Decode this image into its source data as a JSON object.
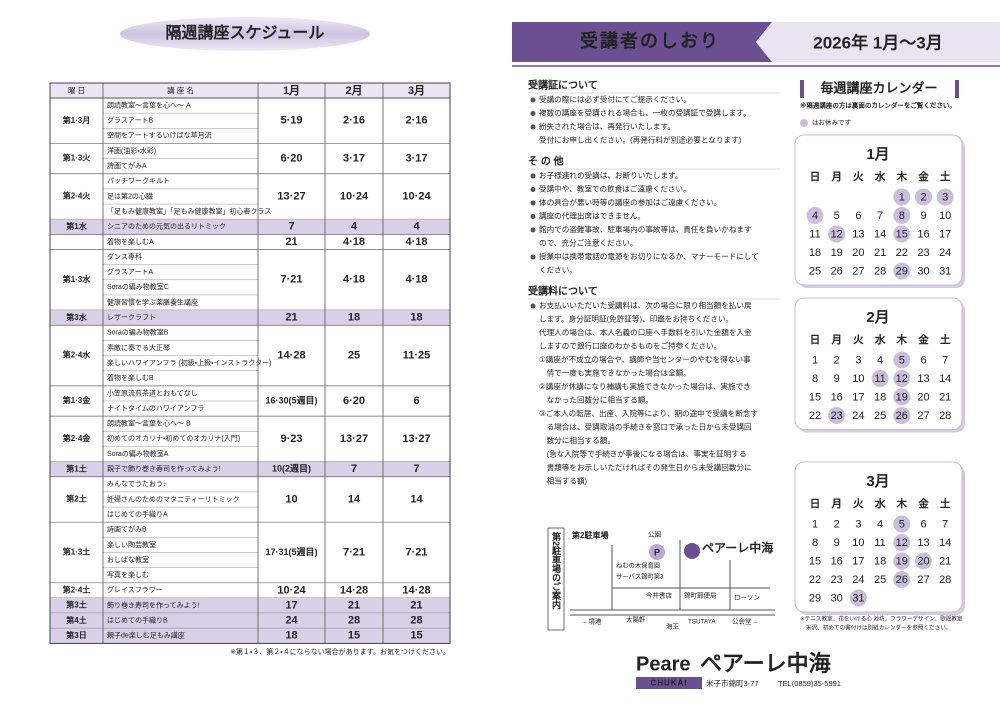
{
  "schedule": {
    "title": "隔週講座スケジュール",
    "header": [
      "曜 日",
      "講 座 名",
      "1月",
      "2月",
      "3月"
    ],
    "groups": [
      {
        "day": "第1·3月",
        "courses": [
          "朗読教室～言葉を心へ～ A",
          "グラスアートB",
          "空間をアートするいけばな草月流"
        ],
        "months": [
          "5·19",
          "2·16",
          "2·16"
        ],
        "shaded": false
      },
      {
        "day": "第1·3火",
        "courses": [
          "洋画(油彩・水彩)",
          "詩画てがみA"
        ],
        "months": [
          "6·20",
          "3·17",
          "3·17"
        ],
        "shaded": false
      },
      {
        "day": "第2·4火",
        "courses": [
          "パッチワークキルト",
          "足は第2の心臓",
          "「足もみ健康教室」「足もみ健康教室」初心者クラス"
        ],
        "months": [
          "13·27",
          "10·24",
          "10·24"
        ],
        "shaded": false
      },
      {
        "day": "第1水",
        "courses": [
          "シニアのための元気の出るリトミック"
        ],
        "months": [
          "7",
          "4",
          "4"
        ],
        "shaded": true
      },
      {
        "day": null,
        "courses": [
          "着物を楽しむA"
        ],
        "months": [
          "21",
          "4·18",
          "4·18"
        ],
        "shaded": false
      },
      {
        "day": "第1·3水",
        "courses": [
          "ダンス専科",
          "グラスアートA",
          "Soraの編み物教室C",
          "健康習慣を学ぶ薬膳養生講座"
        ],
        "months": [
          "7·21",
          "4·18",
          "4·18"
        ],
        "shaded": false
      },
      {
        "day": "第3水",
        "courses": [
          "レザークラフト"
        ],
        "months": [
          "21",
          "18",
          "18"
        ],
        "shaded": true
      },
      {
        "day": "第2·4水",
        "courses": [
          "Soraの編み物教室B",
          "素敵に奏でる大正琴",
          "楽しいハワイアンフラ (初級・上級・インストラクター)",
          "着物を楽しむB"
        ],
        "months": [
          "14·28",
          "25",
          "11·25"
        ],
        "shaded": false
      },
      {
        "day": "第1·3金",
        "courses": [
          "小笠原流煎茶道とおもてなし",
          "ナイトタイムのハワイアンフラ"
        ],
        "months": [
          "16·30(5週目)",
          "6·20",
          "6"
        ],
        "shaded": false
      },
      {
        "day": "第2·4金",
        "courses": [
          "朗読教室～言葉を心へ～ B",
          "初めてのオカリナ・初めてのオカリナ(入門)",
          "Soraの編み物教室A"
        ],
        "months": [
          "9·23",
          "13·27",
          "13·27"
        ],
        "shaded": false
      },
      {
        "day": "第1土",
        "courses": [
          "親子で飾り巻き寿司を作ってみよう!"
        ],
        "months": [
          "10(2週目)",
          "7",
          "7"
        ],
        "shaded": true
      },
      {
        "day": "第2土",
        "courses": [
          "みんなでうたおう♪",
          "妊婦さんのためのマタニティーリトミック",
          "はじめての手織りA"
        ],
        "months": [
          "10",
          "14",
          "14"
        ],
        "shaded": false
      },
      {
        "day": "第1·3土",
        "courses": [
          "詩画てがみB",
          "楽しい陶芸教室",
          "おしばな教室",
          "写真を楽しむ"
        ],
        "months": [
          "17·31(5週目)",
          "7·21",
          "7·21"
        ],
        "shaded": false
      },
      {
        "day": "第2·4土",
        "courses": [
          "グレイスフラワー"
        ],
        "months": [
          "10·24",
          "14·28",
          "14·28"
        ],
        "shaded": false
      },
      {
        "day": "第3土",
        "courses": [
          "飾り巻き寿司を作ってみよう!"
        ],
        "months": [
          "17",
          "21",
          "21"
        ],
        "shaded": true
      },
      {
        "day": "第4土",
        "courses": [
          "はじめての手織りB"
        ],
        "months": [
          "24",
          "28",
          "28"
        ],
        "shaded": true
      },
      {
        "day": "第3日",
        "courses": [
          "親子de楽しむ足もみ講座"
        ],
        "months": [
          "18",
          "15",
          "15"
        ],
        "shaded": true
      }
    ],
    "footnote": "※第１・３、第２・４にならない場合があります。お気をつけください。"
  },
  "guide": {
    "title": "受講者のしおり",
    "period": "2026年 1月～3月",
    "sections": [
      {
        "heading": "受講証について",
        "items": [
          {
            "bullet": true,
            "lines": [
              "受講の際には必ず受付にてご提示ください。"
            ]
          },
          {
            "bullet": true,
            "lines": [
              "複数の講座を受講される場合も、一枚の受講証で受講します。"
            ]
          },
          {
            "bullet": true,
            "lines": [
              "紛失された場合は、再発行いたします。",
              "受付にお申し出ください。(再発行料が別途必要となります)"
            ]
          }
        ]
      },
      {
        "heading": "そ の 他",
        "items": [
          {
            "bullet": true,
            "lines": [
              "お子様連れの受講は、お断りいたします。"
            ]
          },
          {
            "bullet": true,
            "lines": [
              "受講中や、教室での飲食はご遠慮ください。"
            ]
          },
          {
            "bullet": true,
            "lines": [
              "体の具合が悪い時等の講座の参加はご遠慮ください。"
            ]
          },
          {
            "bullet": true,
            "lines": [
              "講座の代理出席はできません。"
            ]
          },
          {
            "bullet": true,
            "lines": [
              "館内での盗難事故、駐車場内の事故等は、責任を負いかねます",
              "ので、充分ご注意ください。"
            ]
          },
          {
            "bullet": true,
            "lines": [
              "授業中は携帯電話の電源をお切りになるか、マナーモードにして",
              "ください。"
            ]
          }
        ]
      },
      {
        "heading": "受講料について",
        "items": [
          {
            "bullet": true,
            "lines": [
              "お支払いいただいた受講料は、次の場合に限り相当額を払い戻",
              "します。身分証明証(免許証等)、印鑑をお持ちください。",
              "代理人の場合は、本人名義の口座へ手数料を引いた金額を入金",
              "しますので銀行口座のわかるものをご持参ください。"
            ]
          },
          {
            "bullet": false,
            "lines": [
              "①講座が不成立の場合や、講師や当センターのやむを得ない事",
              "　情で一度も実施できなかった場合は全額。"
            ]
          },
          {
            "bullet": false,
            "lines": [
              "②講座が休講になり補講も実施できなかった場合は、実施でき",
              "　なかった回数分に相当する額。"
            ]
          },
          {
            "bullet": false,
            "lines": [
              "③ご本人の転居、出産、入院等により、期の途中で受講を断念す",
              "　る場合は、受講取消の手続きを窓口で承った日から未受講回",
              "　数分に相当する額。"
            ]
          },
          {
            "bullet": false,
            "lines": [
              "　(急な入院等で手続きが事後になる場合は、事実を証明する",
              "　書類等をお示しいただければその発生日から未受講回数分に",
              "　相当する額)"
            ]
          }
        ]
      }
    ]
  },
  "calendar": {
    "title": "毎週講座カレンダー",
    "note": "※隔週講座の方は裏面のカレンダーをご覧ください。",
    "legend": "はお休みです",
    "weekdays": [
      "日",
      "月",
      "火",
      "水",
      "木",
      "金",
      "土"
    ],
    "months": [
      {
        "name": "1月",
        "weeks": [
          [
            null,
            null,
            null,
            null,
            1,
            2,
            3
          ],
          [
            4,
            5,
            6,
            7,
            8,
            9,
            10
          ],
          [
            11,
            12,
            13,
            14,
            15,
            16,
            17
          ],
          [
            18,
            19,
            20,
            21,
            22,
            23,
            24
          ],
          [
            25,
            26,
            27,
            28,
            29,
            30,
            31
          ]
        ],
        "closed": [
          1,
          2,
          3,
          4,
          8,
          12,
          15,
          29
        ]
      },
      {
        "name": "2月",
        "weeks": [
          [
            1,
            2,
            3,
            4,
            5,
            6,
            7
          ],
          [
            8,
            9,
            10,
            11,
            12,
            13,
            14
          ],
          [
            15,
            16,
            17,
            18,
            19,
            20,
            21
          ],
          [
            22,
            23,
            24,
            25,
            26,
            27,
            28
          ]
        ],
        "closed": [
          5,
          11,
          12,
          19,
          23,
          26
        ]
      },
      {
        "name": "3月",
        "weeks": [
          [
            1,
            2,
            3,
            4,
            5,
            6,
            7
          ],
          [
            8,
            9,
            10,
            11,
            12,
            13,
            14
          ],
          [
            15,
            16,
            17,
            18,
            19,
            20,
            21
          ],
          [
            22,
            23,
            24,
            25,
            26,
            27,
            28
          ],
          [
            29,
            30,
            31,
            null,
            null,
            null,
            null
          ]
        ],
        "closed": [
          5,
          12,
          19,
          20,
          26,
          31
        ]
      }
    ],
    "footnote": [
      "※テニス教室、花をいける心 池坊、フラワーデザイン、歌謡教室",
      "米沢、初めての書付けは別紙カレンダーを参照ください。"
    ]
  },
  "map": {
    "heading": "第2駐車場のご案内",
    "parking": "第2駐車場",
    "park": "公園",
    "p": "P",
    "center": "ペアーレ中海",
    "nursery": "ねむの木保育園",
    "apartment": "サーパス錦町第3",
    "bookstore": "今井書店",
    "post": "錦町郵便局",
    "lawson": "ローソン",
    "sakaiminato": "←境港",
    "taiyoken": "太陽軒",
    "kaio": "海王",
    "tsutaya": "TSUTAYA",
    "hall": "公会堂→"
  },
  "footer": {
    "logo_en": "Peare",
    "logo_ja": "ペアーレ中海",
    "sub": "CHUKAI",
    "address": "米子市錦町3-77",
    "tel": "TEL(0859)35-5991"
  }
}
